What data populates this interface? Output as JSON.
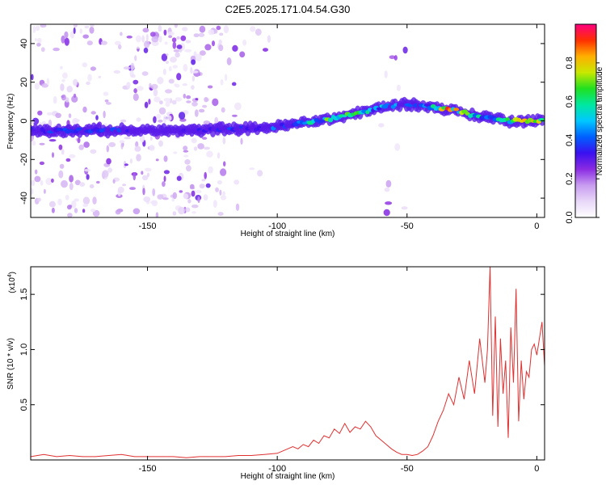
{
  "title": "C2E5.2025.171.04.54.G30",
  "colors": {
    "snr_line": "#e03030",
    "axes": "#000000",
    "colormap": [
      "#ffffff",
      "#e8d8f8",
      "#c89cf0",
      "#8a2be2",
      "#3a10f0",
      "#0060ff",
      "#00c8ff",
      "#00e8a0",
      "#20e020",
      "#c8e800",
      "#ffb000",
      "#ff3000",
      "#ff0080"
    ]
  },
  "chart_data": [
    {
      "type": "heatmap",
      "title": "C2E5.2025.171.04.54.G30",
      "xlabel": "Height of straight line (km)",
      "ylabel": "Frequency (Hz)",
      "xlim": [
        -195,
        3
      ],
      "ylim": [
        -50,
        50
      ],
      "xticks": [
        -150,
        -100,
        -50,
        0
      ],
      "yticks": [
        -40,
        -20,
        0,
        20,
        40
      ],
      "xtick_labels": [
        "-150",
        "-100",
        "-50",
        "0"
      ],
      "ytick_labels": [
        "-40",
        "-20",
        "0",
        "20",
        "40"
      ],
      "colorbar": {
        "label": "Normalized spectral amplitude",
        "range": [
          0,
          1
        ],
        "ticks": [
          "0.0",
          "0.2",
          "0.4",
          "0.6",
          "0.8"
        ]
      },
      "ridge_frequency": {
        "x": [
          -195,
          -180,
          -160,
          -150,
          -140,
          -130,
          -120,
          -110,
          -100,
          -95,
          -90,
          -85,
          -80,
          -75,
          -70,
          -65,
          -60,
          -55,
          -50,
          -45,
          -40,
          -35,
          -30,
          -25,
          -20,
          -15,
          -10,
          -5,
          0,
          3
        ],
        "y": [
          -5,
          -5,
          -5,
          -5,
          -5,
          -5,
          -4,
          -4,
          -3,
          -2,
          -1,
          0,
          1,
          2,
          4,
          5,
          7,
          8,
          9,
          8,
          7,
          6,
          5,
          3,
          2,
          1,
          0,
          0,
          0,
          0
        ]
      },
      "ridge_amplitude": {
        "x": [
          -195,
          -180,
          -160,
          -150,
          -140,
          -130,
          -120,
          -110,
          -100,
          -95,
          -90,
          -85,
          -80,
          -75,
          -70,
          -65,
          -60,
          -55,
          -50,
          -45,
          -40,
          -35,
          -30,
          -25,
          -20,
          -15,
          -10,
          -5,
          0,
          3
        ],
        "y": [
          0.35,
          0.4,
          0.35,
          0.25,
          0.3,
          0.3,
          0.35,
          0.35,
          0.4,
          0.45,
          0.5,
          0.55,
          0.65,
          0.7,
          0.6,
          0.55,
          0.5,
          0.45,
          0.4,
          0.35,
          0.55,
          0.85,
          0.75,
          0.6,
          0.5,
          0.55,
          0.6,
          0.75,
          0.9,
          0.85
        ]
      }
    },
    {
      "type": "line",
      "xlabel": "Height of straight line (km)",
      "ylabel": "SNR (10 * v/v)",
      "y_multiplier": "(x10",
      "y_multiplier_exp": "4",
      "y_multiplier_close": ")",
      "xlim": [
        -195,
        3
      ],
      "ylim": [
        0,
        1.75
      ],
      "xticks": [
        -150,
        -100,
        -50,
        0
      ],
      "yticks": [
        0.5,
        1.0,
        1.5
      ],
      "xtick_labels": [
        "-150",
        "-100",
        "-50",
        "0"
      ],
      "ytick_labels": [
        "0.5",
        "1.0",
        "1.5"
      ],
      "series": [
        {
          "x": [
            -195,
            -190,
            -185,
            -180,
            -175,
            -170,
            -165,
            -160,
            -155,
            -150,
            -145,
            -140,
            -135,
            -130,
            -125,
            -120,
            -115,
            -110,
            -105,
            -100,
            -98,
            -96,
            -94,
            -92,
            -90,
            -88,
            -86,
            -84,
            -82,
            -80,
            -78,
            -76,
            -74,
            -72,
            -70,
            -68,
            -66,
            -64,
            -62,
            -60,
            -58,
            -56,
            -54,
            -52,
            -50,
            -48,
            -46,
            -44,
            -42,
            -40,
            -38,
            -36,
            -34,
            -32,
            -30,
            -28,
            -26,
            -24,
            -22,
            -20,
            -19,
            -18,
            -17,
            -16,
            -15,
            -14,
            -13,
            -12,
            -11,
            -10,
            -9,
            -8,
            -7,
            -6,
            -5,
            -4,
            -3,
            -2,
            -1,
            0,
            1,
            2,
            3
          ],
          "y": [
            0.03,
            0.05,
            0.03,
            0.04,
            0.03,
            0.03,
            0.04,
            0.05,
            0.03,
            0.03,
            0.03,
            0.03,
            0.02,
            0.03,
            0.03,
            0.03,
            0.04,
            0.04,
            0.05,
            0.06,
            0.08,
            0.1,
            0.12,
            0.1,
            0.14,
            0.12,
            0.18,
            0.15,
            0.22,
            0.2,
            0.28,
            0.24,
            0.33,
            0.25,
            0.3,
            0.28,
            0.35,
            0.3,
            0.22,
            0.18,
            0.14,
            0.1,
            0.07,
            0.05,
            0.05,
            0.04,
            0.05,
            0.08,
            0.12,
            0.22,
            0.35,
            0.45,
            0.6,
            0.5,
            0.75,
            0.55,
            0.9,
            0.6,
            1.1,
            0.7,
            1.0,
            1.75,
            0.4,
            1.3,
            0.3,
            1.1,
            0.6,
            0.9,
            0.2,
            1.2,
            0.7,
            1.55,
            0.35,
            0.9,
            0.55,
            0.8,
            0.75,
            1.0,
            1.05,
            0.95,
            1.1,
            1.25,
            0.85
          ]
        }
      ]
    }
  ]
}
